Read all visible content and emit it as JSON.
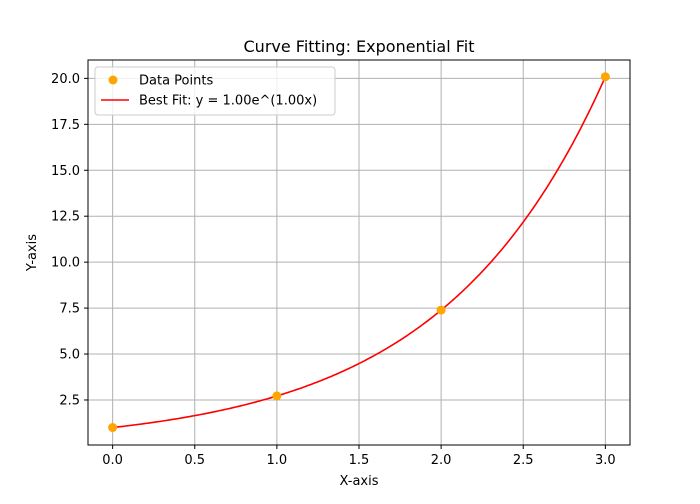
{
  "chart_data": {
    "type": "scatter",
    "title": "Curve Fitting: Exponential Fit",
    "xlabel": "X-axis",
    "ylabel": "Y-axis",
    "xlim": [
      -0.15,
      3.15
    ],
    "ylim": [
      0.05,
      21.0
    ],
    "x_ticks": [
      0.0,
      0.5,
      1.0,
      1.5,
      2.0,
      2.5,
      3.0
    ],
    "x_tick_labels": [
      "0.0",
      "0.5",
      "1.0",
      "1.5",
      "2.0",
      "2.5",
      "3.0"
    ],
    "y_ticks": [
      2.5,
      5.0,
      7.5,
      10.0,
      12.5,
      15.0,
      17.5,
      20.0
    ],
    "y_tick_labels": [
      "2.5",
      "5.0",
      "7.5",
      "10.0",
      "12.5",
      "15.0",
      "17.5",
      "20.0"
    ],
    "grid": true,
    "legend_position": "upper-left",
    "series": [
      {
        "name": "Data Points",
        "kind": "scatter",
        "color": "#ffa500",
        "x": [
          0.0,
          1.0,
          2.0,
          3.0
        ],
        "y": [
          1.0,
          2.72,
          7.39,
          20.09
        ]
      },
      {
        "name": "Best Fit: y = 1.00e^(1.00x)",
        "kind": "line",
        "color": "#ff0000",
        "function": {
          "form": "a*exp(b*x)",
          "a": 1.0,
          "b": 1.0
        },
        "x_range": [
          0.0,
          3.0
        ]
      }
    ]
  }
}
